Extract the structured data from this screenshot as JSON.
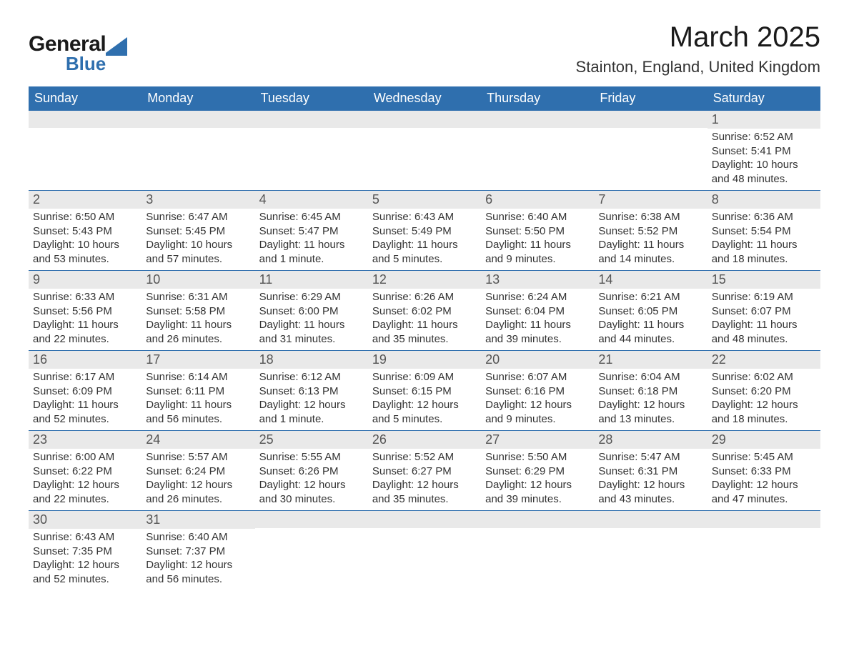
{
  "logo": {
    "top": "General",
    "bottom": "Blue",
    "shape_color": "#2f6fae",
    "text_color_dark": "#1a1a1a",
    "text_color_blue": "#2f6fae"
  },
  "title": "March 2025",
  "location": "Stainton, England, United Kingdom",
  "colors": {
    "header_bg": "#2f6fae",
    "header_text": "#ffffff",
    "daynum_bg": "#e9e9e9",
    "daynum_text": "#555555",
    "body_text": "#333333",
    "rule": "#2f6fae",
    "page_bg": "#ffffff"
  },
  "typography": {
    "title_fontsize": 40,
    "location_fontsize": 22,
    "header_fontsize": 18,
    "daynum_fontsize": 18,
    "body_fontsize": 15,
    "font_family": "Arial"
  },
  "layout": {
    "columns": 7,
    "rows": 6,
    "start_day_index": 6
  },
  "weekdays": [
    "Sunday",
    "Monday",
    "Tuesday",
    "Wednesday",
    "Thursday",
    "Friday",
    "Saturday"
  ],
  "days": [
    {
      "num": "1",
      "sunrise": "Sunrise: 6:52 AM",
      "sunset": "Sunset: 5:41 PM",
      "daylight": "Daylight: 10 hours and 48 minutes."
    },
    {
      "num": "2",
      "sunrise": "Sunrise: 6:50 AM",
      "sunset": "Sunset: 5:43 PM",
      "daylight": "Daylight: 10 hours and 53 minutes."
    },
    {
      "num": "3",
      "sunrise": "Sunrise: 6:47 AM",
      "sunset": "Sunset: 5:45 PM",
      "daylight": "Daylight: 10 hours and 57 minutes."
    },
    {
      "num": "4",
      "sunrise": "Sunrise: 6:45 AM",
      "sunset": "Sunset: 5:47 PM",
      "daylight": "Daylight: 11 hours and 1 minute."
    },
    {
      "num": "5",
      "sunrise": "Sunrise: 6:43 AM",
      "sunset": "Sunset: 5:49 PM",
      "daylight": "Daylight: 11 hours and 5 minutes."
    },
    {
      "num": "6",
      "sunrise": "Sunrise: 6:40 AM",
      "sunset": "Sunset: 5:50 PM",
      "daylight": "Daylight: 11 hours and 9 minutes."
    },
    {
      "num": "7",
      "sunrise": "Sunrise: 6:38 AM",
      "sunset": "Sunset: 5:52 PM",
      "daylight": "Daylight: 11 hours and 14 minutes."
    },
    {
      "num": "8",
      "sunrise": "Sunrise: 6:36 AM",
      "sunset": "Sunset: 5:54 PM",
      "daylight": "Daylight: 11 hours and 18 minutes."
    },
    {
      "num": "9",
      "sunrise": "Sunrise: 6:33 AM",
      "sunset": "Sunset: 5:56 PM",
      "daylight": "Daylight: 11 hours and 22 minutes."
    },
    {
      "num": "10",
      "sunrise": "Sunrise: 6:31 AM",
      "sunset": "Sunset: 5:58 PM",
      "daylight": "Daylight: 11 hours and 26 minutes."
    },
    {
      "num": "11",
      "sunrise": "Sunrise: 6:29 AM",
      "sunset": "Sunset: 6:00 PM",
      "daylight": "Daylight: 11 hours and 31 minutes."
    },
    {
      "num": "12",
      "sunrise": "Sunrise: 6:26 AM",
      "sunset": "Sunset: 6:02 PM",
      "daylight": "Daylight: 11 hours and 35 minutes."
    },
    {
      "num": "13",
      "sunrise": "Sunrise: 6:24 AM",
      "sunset": "Sunset: 6:04 PM",
      "daylight": "Daylight: 11 hours and 39 minutes."
    },
    {
      "num": "14",
      "sunrise": "Sunrise: 6:21 AM",
      "sunset": "Sunset: 6:05 PM",
      "daylight": "Daylight: 11 hours and 44 minutes."
    },
    {
      "num": "15",
      "sunrise": "Sunrise: 6:19 AM",
      "sunset": "Sunset: 6:07 PM",
      "daylight": "Daylight: 11 hours and 48 minutes."
    },
    {
      "num": "16",
      "sunrise": "Sunrise: 6:17 AM",
      "sunset": "Sunset: 6:09 PM",
      "daylight": "Daylight: 11 hours and 52 minutes."
    },
    {
      "num": "17",
      "sunrise": "Sunrise: 6:14 AM",
      "sunset": "Sunset: 6:11 PM",
      "daylight": "Daylight: 11 hours and 56 minutes."
    },
    {
      "num": "18",
      "sunrise": "Sunrise: 6:12 AM",
      "sunset": "Sunset: 6:13 PM",
      "daylight": "Daylight: 12 hours and 1 minute."
    },
    {
      "num": "19",
      "sunrise": "Sunrise: 6:09 AM",
      "sunset": "Sunset: 6:15 PM",
      "daylight": "Daylight: 12 hours and 5 minutes."
    },
    {
      "num": "20",
      "sunrise": "Sunrise: 6:07 AM",
      "sunset": "Sunset: 6:16 PM",
      "daylight": "Daylight: 12 hours and 9 minutes."
    },
    {
      "num": "21",
      "sunrise": "Sunrise: 6:04 AM",
      "sunset": "Sunset: 6:18 PM",
      "daylight": "Daylight: 12 hours and 13 minutes."
    },
    {
      "num": "22",
      "sunrise": "Sunrise: 6:02 AM",
      "sunset": "Sunset: 6:20 PM",
      "daylight": "Daylight: 12 hours and 18 minutes."
    },
    {
      "num": "23",
      "sunrise": "Sunrise: 6:00 AM",
      "sunset": "Sunset: 6:22 PM",
      "daylight": "Daylight: 12 hours and 22 minutes."
    },
    {
      "num": "24",
      "sunrise": "Sunrise: 5:57 AM",
      "sunset": "Sunset: 6:24 PM",
      "daylight": "Daylight: 12 hours and 26 minutes."
    },
    {
      "num": "25",
      "sunrise": "Sunrise: 5:55 AM",
      "sunset": "Sunset: 6:26 PM",
      "daylight": "Daylight: 12 hours and 30 minutes."
    },
    {
      "num": "26",
      "sunrise": "Sunrise: 5:52 AM",
      "sunset": "Sunset: 6:27 PM",
      "daylight": "Daylight: 12 hours and 35 minutes."
    },
    {
      "num": "27",
      "sunrise": "Sunrise: 5:50 AM",
      "sunset": "Sunset: 6:29 PM",
      "daylight": "Daylight: 12 hours and 39 minutes."
    },
    {
      "num": "28",
      "sunrise": "Sunrise: 5:47 AM",
      "sunset": "Sunset: 6:31 PM",
      "daylight": "Daylight: 12 hours and 43 minutes."
    },
    {
      "num": "29",
      "sunrise": "Sunrise: 5:45 AM",
      "sunset": "Sunset: 6:33 PM",
      "daylight": "Daylight: 12 hours and 47 minutes."
    },
    {
      "num": "30",
      "sunrise": "Sunrise: 6:43 AM",
      "sunset": "Sunset: 7:35 PM",
      "daylight": "Daylight: 12 hours and 52 minutes."
    },
    {
      "num": "31",
      "sunrise": "Sunrise: 6:40 AM",
      "sunset": "Sunset: 7:37 PM",
      "daylight": "Daylight: 12 hours and 56 minutes."
    }
  ]
}
